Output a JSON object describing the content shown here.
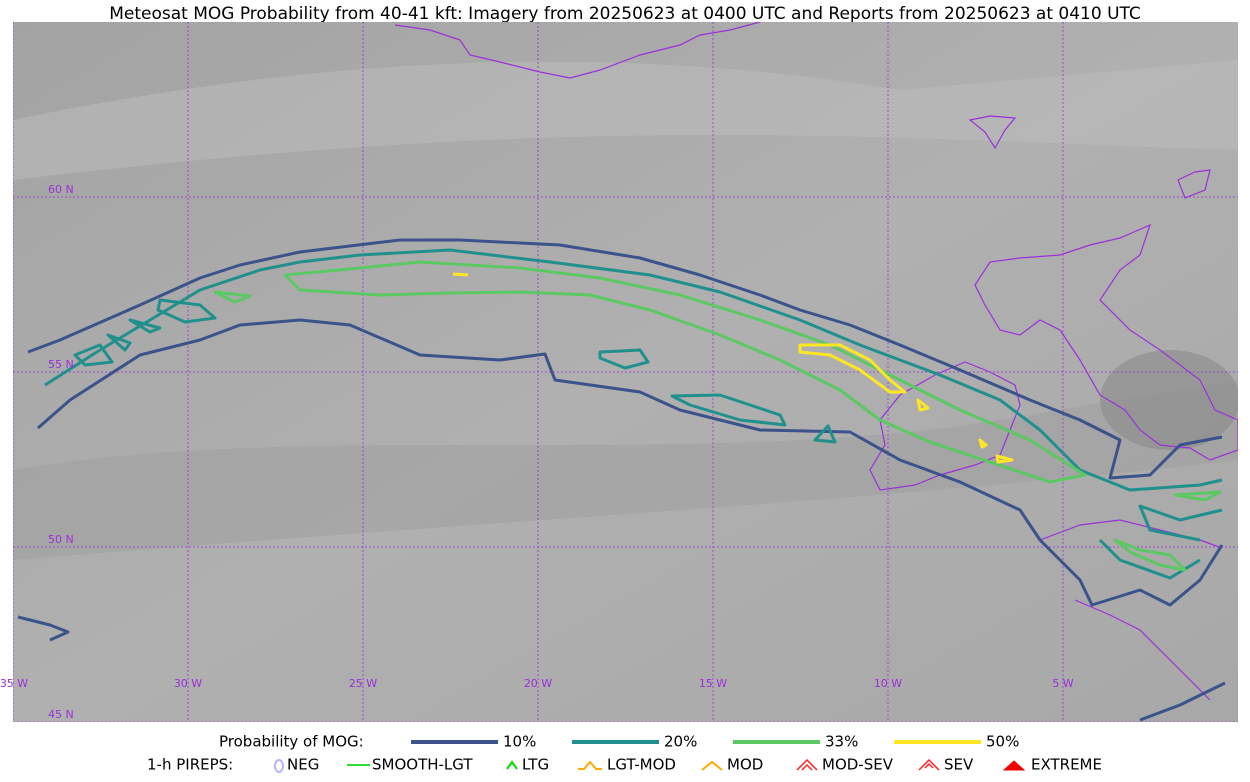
{
  "title": "Meteosat MOG Probability from 40-41 kft: Imagery from 20250623 at 0400 UTC and Reports from 20250623 at 0410 UTC",
  "map": {
    "latitude_labels": [
      "60 N",
      "55 N",
      "50 N",
      "45 N"
    ],
    "longitude_labels": [
      "35 W",
      "30 W",
      "25 W",
      "20 W",
      "15 W",
      "10 W",
      "5 W"
    ]
  },
  "legend": {
    "probability": {
      "label": "Probability of MOG:",
      "items": [
        {
          "label": "10%",
          "color": "#3b528b"
        },
        {
          "label": "20%",
          "color": "#21908d"
        },
        {
          "label": "33%",
          "color": "#5cc863"
        },
        {
          "label": "50%",
          "color": "#fde725"
        }
      ]
    },
    "pireps": {
      "label": "1-h PIREPS:",
      "items": [
        {
          "label": "NEG",
          "color": "#b4b4ff"
        },
        {
          "label": "SMOOTH-LGT",
          "color": "#33dd33"
        },
        {
          "label": "LTG",
          "color": "#00dd00"
        },
        {
          "label": "LGT-MOD",
          "color": "#ffaa00"
        },
        {
          "label": "MOD",
          "color": "#ffaa00"
        },
        {
          "label": "MOD-SEV",
          "color": "#ff2222"
        },
        {
          "label": "SEV",
          "color": "#ff2222"
        },
        {
          "label": "EXTREME",
          "color": "#ee0000"
        }
      ]
    }
  }
}
